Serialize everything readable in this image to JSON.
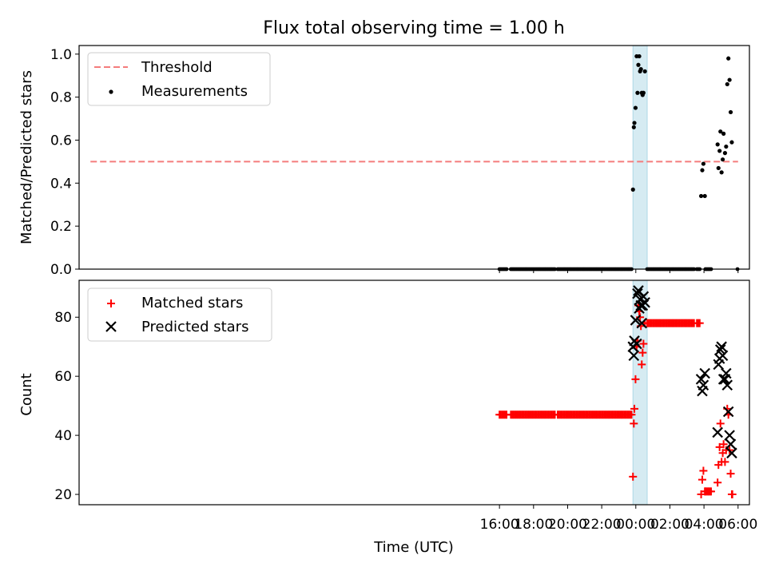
{
  "title": "Flux total observing time = 1.00 h",
  "chart_data": [
    {
      "type": "scatter",
      "ylabel": "Matched/Predicted stars",
      "ylim": [
        0,
        1.04
      ],
      "yticks": [
        "0.0",
        "0.2",
        "0.4",
        "0.6",
        "0.8",
        "1.0"
      ],
      "legend_position": "top-left",
      "threshold": {
        "name": "Threshold",
        "value": 0.5,
        "x_start": "16:00",
        "x_end": "06:00",
        "color": "#f47c7c"
      },
      "series": [
        {
          "name": "Measurements",
          "color": "#000000",
          "points_high": [
            [
              "23:50",
              0.37
            ],
            [
              "23:53",
              0.66
            ],
            [
              "23:55",
              0.68
            ],
            [
              "23:59",
              0.75
            ],
            [
              "00:03",
              0.99
            ],
            [
              "00:06",
              0.82
            ],
            [
              "00:09",
              0.95
            ],
            [
              "00:12",
              0.99
            ],
            [
              "00:15",
              0.92
            ],
            [
              "00:18",
              0.93
            ],
            [
              "00:21",
              0.82
            ],
            [
              "00:24",
              0.81
            ],
            [
              "00:27",
              0.82
            ],
            [
              "00:32",
              0.92
            ],
            [
              "03:50",
              0.34
            ],
            [
              "03:54",
              0.46
            ],
            [
              "03:58",
              0.49
            ],
            [
              "04:03",
              0.34
            ],
            [
              "04:48",
              0.58
            ],
            [
              "04:51",
              0.47
            ],
            [
              "04:55",
              0.55
            ],
            [
              "04:58",
              0.64
            ],
            [
              "05:02",
              0.45
            ],
            [
              "05:06",
              0.51
            ],
            [
              "05:09",
              0.63
            ],
            [
              "05:14",
              0.54
            ],
            [
              "05:18",
              0.57
            ],
            [
              "05:22",
              0.86
            ],
            [
              "05:26",
              0.98
            ],
            [
              "05:30",
              0.88
            ],
            [
              "05:34",
              0.73
            ],
            [
              "05:38",
              0.59
            ]
          ],
          "zero_intervals": [
            [
              "16:00",
              "16:25"
            ],
            [
              "16:40",
              "19:15"
            ],
            [
              "19:25",
              "20:35"
            ],
            [
              "20:40",
              "23:45"
            ],
            [
              "00:40",
              "03:25"
            ],
            [
              "03:35",
              "03:45"
            ],
            [
              "04:05",
              "04:25"
            ],
            [
              "05:58",
              "06:00"
            ]
          ],
          "zero_step_minutes": 5
        }
      ]
    },
    {
      "type": "scatter",
      "xlabel": "Time (UTC)",
      "ylabel": "Count",
      "ylim": [
        16.5,
        92.5
      ],
      "yticks": [
        "20",
        "40",
        "60",
        "80"
      ],
      "xticks": [
        "16:00",
        "18:00",
        "20:00",
        "22:00",
        "00:00",
        "02:00",
        "04:00",
        "06:00"
      ],
      "xlim": [
        "15:20",
        "06:40"
      ],
      "legend_position": "top-left",
      "series": [
        {
          "name": "Matched stars",
          "marker": "plus",
          "color": "#ff0000",
          "constant_runs": [
            {
              "from": "16:00",
              "to": "23:45",
              "value": 47,
              "step_minutes": 5,
              "gaps": [
                [
                  "16:25",
                  "16:40"
                ],
                [
                  "19:15",
                  "19:25"
                ],
                [
                  "20:35",
                  "20:40"
                ]
              ]
            },
            {
              "from": "00:40",
              "to": "03:25",
              "value": 78,
              "step_minutes": 5,
              "gaps": []
            },
            {
              "from": "03:35",
              "to": "03:45",
              "value": 78,
              "step_minutes": 5,
              "gaps": []
            },
            {
              "from": "04:05",
              "to": "04:25",
              "value": 21,
              "step_minutes": 4,
              "gaps": []
            }
          ],
          "points": [
            [
              "23:50",
              26
            ],
            [
              "23:53",
              44
            ],
            [
              "23:55",
              49
            ],
            [
              "23:59",
              59
            ],
            [
              "00:03",
              70
            ],
            [
              "00:06",
              72
            ],
            [
              "00:09",
              84
            ],
            [
              "00:12",
              82
            ],
            [
              "00:15",
              80
            ],
            [
              "00:18",
              77
            ],
            [
              "00:21",
              64
            ],
            [
              "00:24",
              68
            ],
            [
              "00:27",
              71
            ],
            [
              "00:32",
              78
            ],
            [
              "03:50",
              20
            ],
            [
              "03:54",
              25
            ],
            [
              "03:58",
              28
            ],
            [
              "04:03",
              21
            ],
            [
              "04:48",
              24
            ],
            [
              "04:51",
              30
            ],
            [
              "04:55",
              36
            ],
            [
              "04:58",
              44
            ],
            [
              "05:02",
              31
            ],
            [
              "05:06",
              34
            ],
            [
              "05:09",
              37
            ],
            [
              "05:14",
              31
            ],
            [
              "05:18",
              35
            ],
            [
              "05:22",
              49
            ],
            [
              "05:26",
              47
            ],
            [
              "05:30",
              35
            ],
            [
              "05:34",
              27
            ],
            [
              "05:38",
              20
            ],
            [
              "05:40",
              20
            ]
          ]
        },
        {
          "name": "Predicted stars",
          "marker": "x",
          "color": "#000000",
          "points": [
            [
              "23:50",
              70
            ],
            [
              "23:53",
              67
            ],
            [
              "23:55",
              72
            ],
            [
              "23:59",
              79
            ],
            [
              "00:03",
              71
            ],
            [
              "00:06",
              88
            ],
            [
              "00:09",
              89
            ],
            [
              "00:12",
              83
            ],
            [
              "00:15",
              86
            ],
            [
              "00:18",
              84
            ],
            [
              "00:21",
              78
            ],
            [
              "00:24",
              84
            ],
            [
              "00:27",
              87
            ],
            [
              "00:32",
              85
            ],
            [
              "03:50",
              59
            ],
            [
              "03:54",
              55
            ],
            [
              "03:58",
              57
            ],
            [
              "04:03",
              61
            ],
            [
              "04:48",
              41
            ],
            [
              "04:51",
              64
            ],
            [
              "04:55",
              66
            ],
            [
              "04:58",
              69
            ],
            [
              "05:02",
              70
            ],
            [
              "05:06",
              67
            ],
            [
              "05:09",
              59
            ],
            [
              "05:14",
              59
            ],
            [
              "05:18",
              61
            ],
            [
              "05:22",
              57
            ],
            [
              "05:26",
              48
            ],
            [
              "05:30",
              40
            ],
            [
              "05:34",
              37
            ],
            [
              "05:38",
              34
            ]
          ]
        }
      ]
    }
  ],
  "highlight_span": {
    "from": "23:50",
    "to": "00:40",
    "color": "#add8e6"
  }
}
